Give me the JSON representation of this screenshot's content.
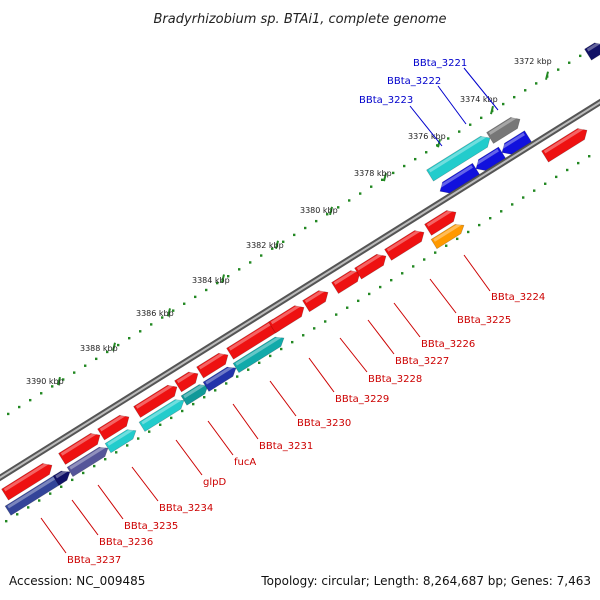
{
  "title": "Bradyrhizobium sp. BTAi1, complete genome",
  "footer": {
    "accession": "Accession: NC_009485",
    "summary": "Topology: circular; Length: 8,264,687 bp; Genes: 7,463"
  },
  "colors": {
    "forward": "#ee1111",
    "reverse_strand_rna": "#1111dd",
    "cyan": "#22cccc",
    "grey": "#777777",
    "orange": "#ff9900",
    "backbone": "#999999",
    "tick": "#228822",
    "label_forward": "#cc0000",
    "label_reverse": "#0000cc"
  },
  "ruler": [
    "3372 kbp",
    "3374 kbp",
    "3376 kbp",
    "3378 kbp",
    "3380 kbp",
    "3382 kbp",
    "3384 kbp",
    "3386 kbp",
    "3388 kbp",
    "3390 kbp"
  ],
  "gene_labels_top": [
    "BBta_3221",
    "BBta_3222",
    "BBta_3223"
  ],
  "gene_labels_bottom": [
    "BBta_3224",
    "BBta_3225",
    "BBta_3226",
    "BBta_3227",
    "BBta_3228",
    "BBta_3229",
    "BBta_3230",
    "BBta_3231",
    "fucA",
    "glpD",
    "BBta_3234",
    "BBta_3235",
    "BBta_3236",
    "BBta_3237"
  ]
}
